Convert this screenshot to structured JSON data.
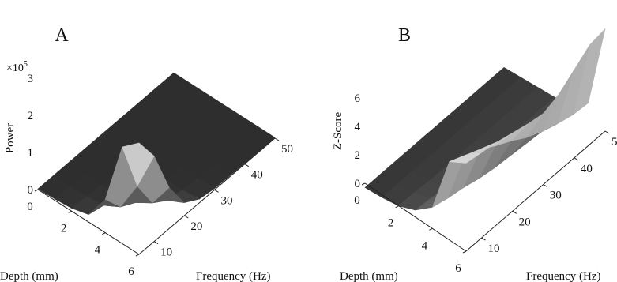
{
  "chart_data": [
    {
      "type": "surface",
      "panel_label": "A",
      "zlabel": "Power",
      "zscale_label": "×10",
      "zscale_exponent": "5",
      "xlabel": "Depth (mm)",
      "ylabel": "Frequency (Hz)",
      "depth_ticks": [
        "0",
        "2",
        "4",
        "6"
      ],
      "frequency_ticks": [
        "10",
        "20",
        "30",
        "40",
        "50"
      ],
      "z_ticks": [
        "0",
        "1",
        "2",
        "3"
      ],
      "zlim": [
        0,
        3
      ],
      "depth_range": [
        0,
        6
      ],
      "frequency_range": [
        5,
        50
      ],
      "depth": [
        0,
        1,
        2,
        3,
        4,
        5,
        6
      ],
      "frequency": [
        5,
        10,
        15,
        20,
        25,
        30,
        35,
        40,
        45,
        50
      ],
      "values": [
        [
          0.02,
          0.02,
          0.02,
          0.02,
          0.02,
          0.02,
          0.02,
          0.02,
          0.02,
          0.02
        ],
        [
          0.04,
          0.03,
          0.02,
          0.02,
          0.02,
          0.02,
          0.02,
          0.02,
          0.02,
          0.02
        ],
        [
          0.08,
          0.05,
          0.03,
          0.02,
          0.02,
          0.02,
          0.02,
          0.02,
          0.02,
          0.02
        ],
        [
          0.2,
          0.1,
          0.05,
          0.03,
          0.02,
          0.02,
          0.02,
          0.02,
          0.02,
          0.02
        ],
        [
          0.9,
          0.35,
          0.12,
          0.05,
          0.03,
          0.02,
          0.02,
          0.02,
          0.02,
          0.02
        ],
        [
          2.6,
          1.2,
          0.4,
          0.12,
          0.05,
          0.03,
          0.02,
          0.02,
          0.02,
          0.02
        ],
        [
          3.0,
          2.3,
          1.1,
          0.35,
          0.1,
          0.04,
          0.03,
          0.02,
          0.02,
          0.02
        ]
      ]
    },
    {
      "type": "surface",
      "panel_label": "B",
      "zlabel": "Z-Score",
      "xlabel": "Depth (mm)",
      "ylabel": "Frequency (Hz)",
      "depth_ticks": [
        "0",
        "2",
        "4",
        "6"
      ],
      "frequency_ticks": [
        "10",
        "20",
        "30",
        "40",
        "50"
      ],
      "z_ticks": [
        "0",
        "2",
        "4",
        "6"
      ],
      "zlim": [
        -0.5,
        7
      ],
      "depth_range": [
        0,
        6
      ],
      "frequency_range": [
        5,
        50
      ],
      "depth": [
        0,
        1,
        2,
        3,
        4,
        5,
        6
      ],
      "frequency": [
        5,
        10,
        15,
        20,
        25,
        30,
        35,
        40,
        45,
        50
      ],
      "values": [
        [
          -0.3,
          -0.3,
          -0.3,
          -0.3,
          -0.3,
          -0.3,
          -0.3,
          -0.3,
          -0.3,
          -0.3
        ],
        [
          -0.2,
          -0.2,
          -0.2,
          -0.2,
          -0.2,
          -0.2,
          -0.2,
          -0.2,
          -0.2,
          -0.2
        ],
        [
          0.0,
          0.0,
          -0.1,
          -0.1,
          -0.1,
          -0.1,
          -0.1,
          -0.1,
          -0.1,
          -0.1
        ],
        [
          0.5,
          0.4,
          0.3,
          0.2,
          0.1,
          0.0,
          0.0,
          0.0,
          0.0,
          0.0
        ],
        [
          1.5,
          1.2,
          1.0,
          0.7,
          0.5,
          0.4,
          0.3,
          0.2,
          0.2,
          0.2
        ],
        [
          5.5,
          5.0,
          4.5,
          3.8,
          3.2,
          2.5,
          2.0,
          1.6,
          1.3,
          1.2
        ],
        [
          6.2,
          6.0,
          5.8,
          5.5,
          5.2,
          5.0,
          5.4,
          6.2,
          7.0,
          7.2
        ]
      ]
    }
  ]
}
